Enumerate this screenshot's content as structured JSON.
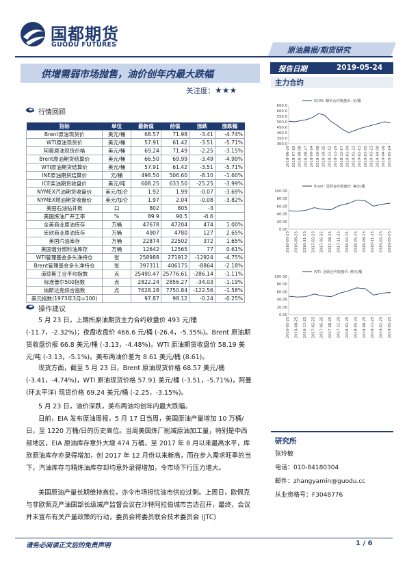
{
  "header": {
    "logo_cn": "国都期货",
    "logo_en": "GUODU FUTURES",
    "band": "原油晨报/期货研究",
    "title": "供增需弱市场抛售，油价创年内最大跌幅",
    "attention_label": "关注度：",
    "attention_stars": "★★★",
    "report_date_label": "报告日期",
    "report_date": "2019-05-24",
    "side_heading": "主力合约"
  },
  "sections": {
    "market_review": "行情回顾",
    "operation": "操作建议"
  },
  "table": {
    "headers": [
      "指标",
      "单位",
      "最新值",
      "前值",
      "涨跌",
      "涨跌幅"
    ],
    "rows": [
      [
        "Brent原油现货价",
        "美元/桶",
        "68.57",
        "71.98",
        "-3.41",
        "-4.74%"
      ],
      [
        "WTI原油现货价",
        "美元/桶",
        "57.91",
        "61.42",
        "-3.51",
        "-5.71%"
      ],
      [
        "阿曼原油现货价格",
        "美元/桶",
        "69.24",
        "71.49",
        "-2.25",
        "-3.15%"
      ],
      [
        "Brent原油期货结算价",
        "美元/桶",
        "66.50",
        "69.99",
        "-3.49",
        "-4.99%"
      ],
      [
        "WTI原油期货结算价",
        "美元/桶",
        "57.91",
        "61.42",
        "-3.51",
        "-5.71%"
      ],
      [
        "INE原油期货结算价",
        "元/桶",
        "498.50",
        "506.60",
        "-8.10",
        "-1.60%"
      ],
      [
        "ICE柴油期货收盘价",
        "美元/吨",
        "608.25",
        "633.50",
        "-25.25",
        "-3.99%"
      ],
      [
        "NYMEX汽油期货收盘价",
        "美元/加仑",
        "1.92",
        "1.99",
        "-0.07",
        "-3.69%"
      ],
      [
        "NYMEX燃油期货收盘价",
        "美元/加仑",
        "1.97",
        "2.04",
        "-0.08",
        "-3.82%"
      ],
      [
        "美国石油钻井数",
        "口",
        "802",
        "805",
        "-3",
        ""
      ],
      [
        "美国炼油厂开工率",
        "%",
        "89.9",
        "90.5",
        "-0.6",
        ""
      ],
      [
        "全美商业原油库存",
        "万桶",
        "47678",
        "47204",
        "474",
        "1.00%"
      ],
      [
        "库欣商业原油库存",
        "万桶",
        "4907",
        "4780",
        "127",
        "2.65%"
      ],
      [
        "美国汽油库存",
        "万桶",
        "22874",
        "22502",
        "372",
        "1.65%"
      ],
      [
        "美国馏分燃料油库存",
        "万桶",
        "12642",
        "12565",
        "77",
        "0.61%"
      ],
      [
        "WTI管理基金多头净持仓",
        "张",
        "258988",
        "271912",
        "-12924",
        "-4.75%"
      ],
      [
        "Brent管理基金多头净持仓",
        "张",
        "397311",
        "406175",
        "-8864",
        "-2.18%"
      ],
      [
        "道琼斯工业平均指数",
        "点",
        "25490.47",
        "25776.61",
        "-286.14",
        "-1.11%"
      ],
      [
        "标准普尔500指数",
        "点",
        "2822.24",
        "2856.27",
        "-34.03",
        "-1.19%"
      ],
      [
        "纳斯达克综合指数",
        "点",
        "7628.28",
        "7750.84",
        "-122.56",
        "-1.58%"
      ],
      [
        "美元指数(1973年3月=100)",
        "",
        "97.87",
        "98.12",
        "-0.24",
        "-0.25%"
      ]
    ]
  },
  "body": {
    "p1": "5 月 23 日，上期所原油期货主力合约收盘价 493 元/桶 (-11.7，-2.32%)；夜盘收盘价 466.6 元/桶 (-26.4，-5.35%)。Brent 原油期货收盘价报 66.8 美元/桶 (-3.13，-4.48%)。WTI 原油期货收盘价 58.19 美元/吨 (-3.13，-5.1%)。美布两油价差为 8.61 美元/桶 (8.61)。",
    "p2": "现货方面，截至 5 月 23 日，Brent 原油现货价格 68.57 美元/桶 (-3.41，-4.74%)，WTI 原油现货价格 57.91 美元/桶 (-3.51，-5.71%)，阿曼 (环太平洋) 现货价格 69.24 美元/桶 (-2.25，-3.15%)。",
    "p3": "5 月 23 日，油价深跌，美布两油均创年内最大跌幅。",
    "p4": "日前，EIA 发布原油周报，5 月 17 日当周，美国原油产量增加 10 万桶/日，至 1220 万桶/日的历史高位。当周美国炼厂削减原油加工量，特别是中西部地区，EIA 原油库存意外大增 474 万桶，至 2017 年 8 月以来最高水平，库欣原油库存亦录得增加，创 2017 年 12 月份以来新高，而在步入需求旺季的当下，汽油库存与精炼油库存却均意外录得增加，令市场下行压力增大。",
    "p5": "美国原油产量长期维持高位，亦令市场担忧油市供应过剩。上周日，欧佩克与非欧佩克产油国部长级减产监督会议在沙特阿拉伯城市吉达召开，最终，会议并未宣布有关产量政策的行动，委员会将委员联合技术委员会 (JTC)"
  },
  "charts": {
    "chart1_legend": "SC00: 期价合约收盘价: 元/桶",
    "chart2_legend": "Brent: 活跃合约收盘价: 美元/桶",
    "chart3_legend": "WTI: 活跃合约收盘价: 美元/桶",
    "chart1_yticks": [
      "650.0",
      "600.0",
      "550.0",
      "500.0",
      "450.0",
      "400.0",
      "350.0",
      "300.0"
    ],
    "chart1_xticks": [
      "2018-06-29",
      "2018-07-19",
      "2018-08-08",
      "2018-08-27",
      "2018-09-14",
      "2018-10-08",
      "2018-10-25",
      "2018-11-12",
      "2018-11-29",
      "2018-12-17",
      "2019-01-04",
      "2019-01-22",
      "2019-02-13",
      "2019-03-05",
      "2019-03-21",
      "2019-04-09",
      "2019-04-26",
      "2019-05-14"
    ],
    "chart2_yticks": [
      "100.00",
      "80.00",
      "60.00",
      "40.00",
      "20.00",
      "0.00"
    ],
    "chart2_xticks": [
      "2016-05-25",
      "2016-08-25",
      "2016-11-25",
      "2017-02-25",
      "2017-05-25",
      "2017-08-25",
      "2017-11-25",
      "2018-02-25",
      "2018-05-25",
      "2018-08-25",
      "2018-11-25",
      "2019-02-25",
      "2019-05-25"
    ],
    "chart3_yticks": [
      "100.00",
      "80.00",
      "60.00",
      "40.00",
      "20.00",
      "0.00"
    ],
    "chart3_xticks": [
      "2016-05-25",
      "2016-08-25",
      "2016-11-25",
      "2017-02-25",
      "2017-05-25",
      "2017-08-25",
      "2017-11-25",
      "2018-02-25",
      "2018-05-25",
      "2018-08-25",
      "2018-11-25",
      "2019-02-25",
      "2019-05-25"
    ],
    "line_color": "#1f3a6e"
  },
  "contacts": {
    "title": "研究所",
    "name": "张玲敏",
    "phone": "电话：010-84180304",
    "email": "邮件：zhangyamin@guodu.cc",
    "license": "从业资格号：F3048776"
  },
  "footer": {
    "disclaimer": "请务必阅读正文后的免责声明",
    "page": "1 / 6"
  },
  "chart_data": [
    {
      "type": "line",
      "legend": "SC00: 期价合约收盘价: 元/桶",
      "ylim": [
        300,
        650
      ],
      "x": [
        "2018-06-29",
        "2018-07-19",
        "2018-08-08",
        "2018-08-27",
        "2018-09-14",
        "2018-10-08",
        "2018-10-25",
        "2018-11-12",
        "2018-11-29",
        "2018-12-17",
        "2019-01-04",
        "2019-01-22",
        "2019-02-13",
        "2019-03-05",
        "2019-03-21",
        "2019-04-09",
        "2019-04-26",
        "2019-05-14"
      ],
      "series": [
        {
          "values": [
            505,
            500,
            510,
            520,
            540,
            575,
            560,
            505,
            470,
            430,
            400,
            420,
            440,
            455,
            470,
            485,
            500,
            490
          ]
        }
      ]
    },
    {
      "type": "line",
      "legend": "Brent: 活跃合约收盘价: 美元/桶",
      "ylim": [
        0,
        100
      ],
      "x": [
        "2016-05-25",
        "2016-08-25",
        "2016-11-25",
        "2017-02-25",
        "2017-05-25",
        "2017-08-25",
        "2017-11-25",
        "2018-02-25",
        "2018-05-25",
        "2018-08-25",
        "2018-11-25",
        "2019-02-25",
        "2019-05-25"
      ],
      "series": [
        {
          "values": [
            48,
            47,
            49,
            56,
            52,
            51,
            62,
            67,
            76,
            74,
            60,
            65,
            68
          ]
        }
      ]
    },
    {
      "type": "line",
      "legend": "WTI: 活跃合约收盘价: 美元/桶",
      "ylim": [
        0,
        100
      ],
      "x": [
        "2016-05-25",
        "2016-08-25",
        "2016-11-25",
        "2017-02-25",
        "2017-05-25",
        "2017-08-25",
        "2017-11-25",
        "2018-02-25",
        "2018-05-25",
        "2018-08-25",
        "2018-11-25",
        "2019-02-25",
        "2019-05-25"
      ],
      "series": [
        {
          "values": [
            48,
            46,
            47,
            54,
            49,
            47,
            56,
            62,
            70,
            68,
            51,
            56,
            58
          ]
        }
      ]
    }
  ]
}
